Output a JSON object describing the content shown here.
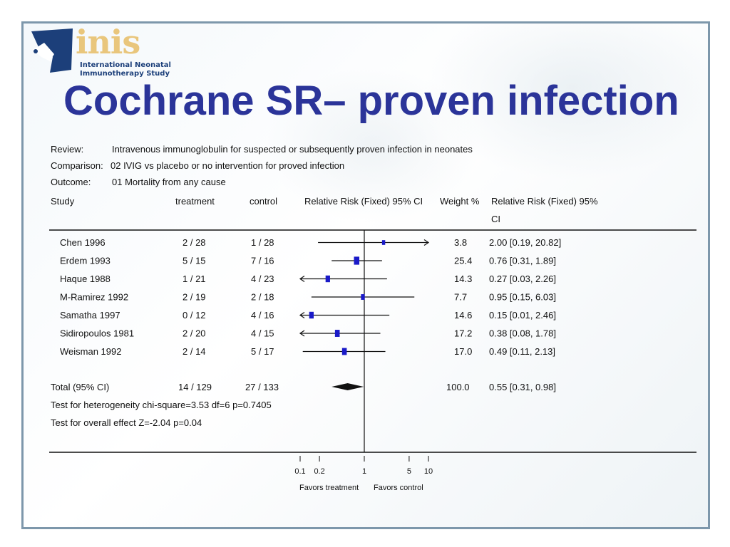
{
  "logo": {
    "wordmark": "inis",
    "subtitle_line1": "International Neonatal",
    "subtitle_line2": "Immunotherapy Study"
  },
  "slide": {
    "title": "Cochrane SR– proven infection"
  },
  "review_header": {
    "review_label": "Review:",
    "review_value": "Intravenous immunoglobulin for suspected or subsequently proven infection in neonates",
    "comparison_label": "Comparison:",
    "comparison_value": "02 IVIG vs placebo or no intervention for proved infection",
    "outcome_label": "Outcome:",
    "outcome_value": "01 Mortality from any cause"
  },
  "columns": {
    "study": "Study",
    "treatment": "treatment",
    "control": "control",
    "plot_header": "Relative Risk (Fixed) 95% CI",
    "weight": "Weight %",
    "rr_header_line1": "Relative Risk (Fixed) 95%",
    "rr_header_line2": "CI"
  },
  "chart_data": {
    "type": "forest",
    "scale": "log",
    "xlim": [
      0.1,
      10
    ],
    "null_line": 1,
    "ticks": [
      0.1,
      0.2,
      1,
      5,
      10
    ],
    "tick_labels": [
      "0.1",
      "0.2",
      "1",
      "5",
      "10"
    ],
    "left_label": "Favors treatment",
    "right_label": "Favors control",
    "studies": [
      {
        "study": "Chen 1996",
        "treatment": "2 / 28",
        "control": "1 / 28",
        "weight": "3.8",
        "rr_text": "2.00 [0.19, 20.82]",
        "rr": 2.0,
        "lo": 0.19,
        "hi": 20.82
      },
      {
        "study": "Erdem 1993",
        "treatment": "5 / 15",
        "control": "7 / 16",
        "weight": "25.4",
        "rr_text": "0.76 [0.31, 1.89]",
        "rr": 0.76,
        "lo": 0.31,
        "hi": 1.89
      },
      {
        "study": "Haque 1988",
        "treatment": "1 / 21",
        "control": "4 / 23",
        "weight": "14.3",
        "rr_text": "0.27 [0.03, 2.26]",
        "rr": 0.27,
        "lo": 0.03,
        "hi": 2.26
      },
      {
        "study": "M-Ramirez 1992",
        "treatment": "2 / 19",
        "control": "2 / 18",
        "weight": "7.7",
        "rr_text": "0.95 [0.15, 6.03]",
        "rr": 0.95,
        "lo": 0.15,
        "hi": 6.03
      },
      {
        "study": "Samatha 1997",
        "treatment": "0 / 12",
        "control": "4 / 16",
        "weight": "14.6",
        "rr_text": "0.15 [0.01, 2.46]",
        "rr": 0.15,
        "lo": 0.01,
        "hi": 2.46
      },
      {
        "study": "Sidiropoulos 1981",
        "treatment": "2 / 20",
        "control": "4 / 15",
        "weight": "17.2",
        "rr_text": "0.38 [0.08, 1.78]",
        "rr": 0.38,
        "lo": 0.08,
        "hi": 1.78
      },
      {
        "study": "Weisman 1992",
        "treatment": "2 / 14",
        "control": "5 / 17",
        "weight": "17.0",
        "rr_text": "0.49 [0.11, 2.13]",
        "rr": 0.49,
        "lo": 0.11,
        "hi": 2.13
      }
    ],
    "total": {
      "study": "Total (95% CI)",
      "treatment": "14 / 129",
      "control": "27 / 133",
      "weight": "100.0",
      "rr_text": "0.55 [0.31, 0.98]",
      "rr": 0.55,
      "lo": 0.31,
      "hi": 0.98
    },
    "heterogeneity": "Test for heterogeneity chi-square=3.53 df=6 p=0.7405",
    "overall_effect": "Test for overall effect Z=-2.04 p=0.04"
  },
  "colors": {
    "title": "#2b3499",
    "marker": "#1a1ac8",
    "frame": "#7d97ab",
    "logo_gold": "#e9c67c",
    "logo_blue": "#1c3f7a"
  }
}
